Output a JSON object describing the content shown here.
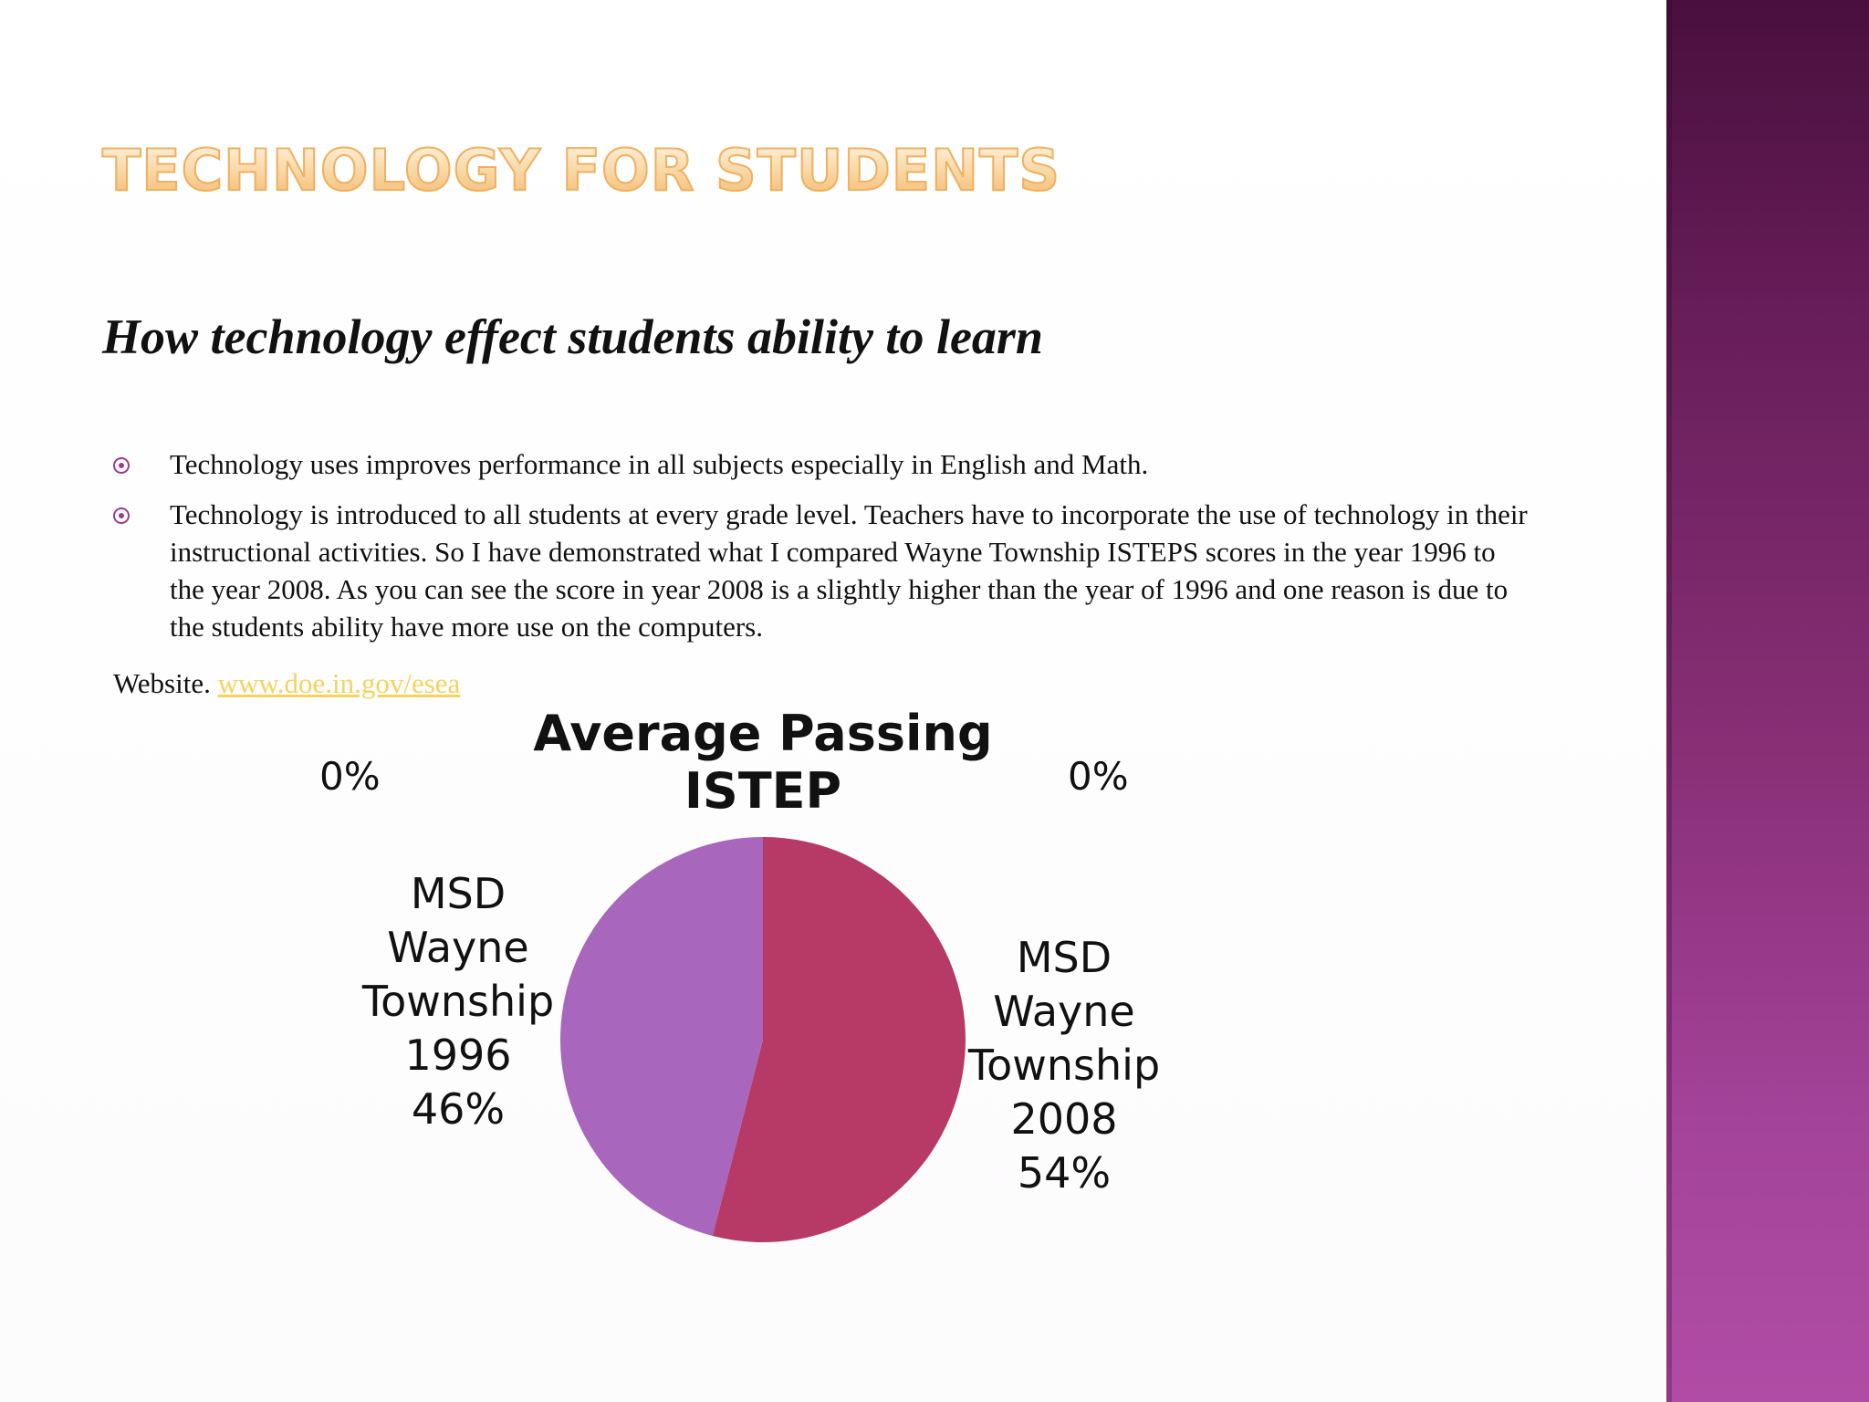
{
  "slide": {
    "title": "TECHNOLOGY FOR STUDENTS",
    "subtitle": "How technology effect students ability to learn",
    "bullets": [
      "Technology uses improves performance in all subjects especially in English and Math.",
      "Technology is introduced to all students at every grade level.  Teachers have to incorporate the use of technology in their instructional activities.  So I have demonstrated what I compared Wayne Township ISTEPS scores in the year 1996 to the year 2008.  As you can see the score in year 2008 is a slightly higher than the year of 1996 and one reason is due to the students ability have more use on the computers."
    ],
    "website_label": "Website.",
    "website_link": "www.doe.in.gov/esea",
    "colors": {
      "band_dark": "#4a0f3d",
      "band_light": "#b04ca5",
      "bullet": "#9a3e8c",
      "link": "#f4d35e"
    }
  },
  "chart_data": {
    "type": "pie",
    "title": "Average Passing ISTEP",
    "slices": [
      {
        "name_lines": [
          "MSD",
          "Wayne",
          "Township",
          "2008"
        ],
        "value": 54,
        "label": "54%",
        "color": "#b63a65"
      },
      {
        "name_lines": [
          "MSD",
          "Wayne",
          "Township",
          "1996"
        ],
        "value": 46,
        "label": "46%",
        "color": "#a866bd"
      }
    ],
    "extra_labels": [
      "0%",
      "0%"
    ],
    "legend": "none"
  }
}
